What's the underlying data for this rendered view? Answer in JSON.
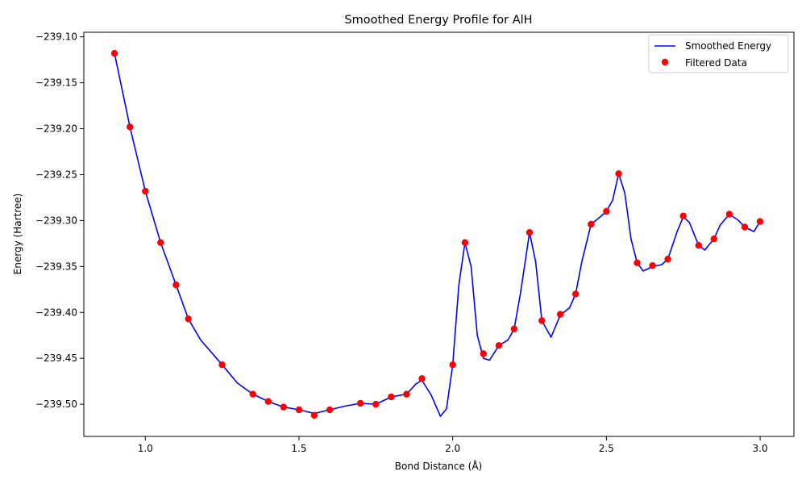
{
  "chart_data": {
    "type": "line",
    "title": "Smoothed Energy Profile for AlH",
    "xlabel": "Bond Distance (Å)",
    "ylabel": "Energy (Hartree)",
    "xlim": [
      0.8,
      3.11
    ],
    "ylim": [
      -239.535,
      -239.095
    ],
    "xticks": [
      1.0,
      1.5,
      2.0,
      2.5,
      3.0
    ],
    "xtick_labels": [
      "1.0",
      "1.5",
      "2.0",
      "2.5",
      "3.0"
    ],
    "yticks": [
      -239.1,
      -239.15,
      -239.2,
      -239.25,
      -239.3,
      -239.35,
      -239.4,
      -239.45,
      -239.5
    ],
    "ytick_labels": [
      "−239.10",
      "−239.15",
      "−239.20",
      "−239.25",
      "−239.30",
      "−239.35",
      "−239.40",
      "−239.45",
      "−239.50"
    ],
    "grid": false,
    "legend_position": "top-right",
    "series": [
      {
        "name": "Smoothed Energy",
        "kind": "line",
        "color": "#0000ff",
        "x": [
          0.9,
          0.95,
          1.0,
          1.05,
          1.1,
          1.14,
          1.18,
          1.25,
          1.3,
          1.35,
          1.4,
          1.45,
          1.5,
          1.55,
          1.6,
          1.65,
          1.7,
          1.75,
          1.8,
          1.85,
          1.88,
          1.9,
          1.93,
          1.96,
          1.98,
          2.0,
          2.02,
          2.04,
          2.06,
          2.08,
          2.1,
          2.12,
          2.15,
          2.18,
          2.2,
          2.22,
          2.25,
          2.27,
          2.29,
          2.32,
          2.35,
          2.38,
          2.4,
          2.42,
          2.45,
          2.48,
          2.5,
          2.52,
          2.54,
          2.56,
          2.58,
          2.6,
          2.62,
          2.65,
          2.68,
          2.7,
          2.73,
          2.75,
          2.77,
          2.8,
          2.82,
          2.85,
          2.87,
          2.9,
          2.93,
          2.95,
          2.98,
          3.0
        ],
        "y": [
          -239.118,
          -239.198,
          -239.268,
          -239.324,
          -239.37,
          -239.407,
          -239.43,
          -239.457,
          -239.477,
          -239.489,
          -239.497,
          -239.503,
          -239.506,
          -239.51,
          -239.506,
          -239.502,
          -239.499,
          -239.5,
          -239.492,
          -239.489,
          -239.478,
          -239.474,
          -239.49,
          -239.513,
          -239.505,
          -239.457,
          -239.37,
          -239.324,
          -239.35,
          -239.425,
          -239.45,
          -239.452,
          -239.436,
          -239.43,
          -239.418,
          -239.38,
          -239.313,
          -239.345,
          -239.409,
          -239.427,
          -239.403,
          -239.395,
          -239.38,
          -239.345,
          -239.304,
          -239.296,
          -239.29,
          -239.278,
          -239.249,
          -239.27,
          -239.32,
          -239.346,
          -239.355,
          -239.35,
          -239.348,
          -239.342,
          -239.312,
          -239.296,
          -239.302,
          -239.327,
          -239.332,
          -239.32,
          -239.305,
          -239.293,
          -239.3,
          -239.307,
          -239.312,
          -239.301
        ]
      },
      {
        "name": "Filtered Data",
        "kind": "scatter",
        "color": "#ff0000",
        "x": [
          0.9,
          0.95,
          1.0,
          1.05,
          1.1,
          1.14,
          1.25,
          1.35,
          1.4,
          1.45,
          1.5,
          1.55,
          1.6,
          1.7,
          1.75,
          1.8,
          1.85,
          1.9,
          2.0,
          2.04,
          2.1,
          2.15,
          2.2,
          2.25,
          2.29,
          2.35,
          2.4,
          2.45,
          2.5,
          2.54,
          2.6,
          2.65,
          2.7,
          2.75,
          2.8,
          2.85,
          2.9,
          2.95,
          3.0
        ],
        "y": [
          -239.118,
          -239.198,
          -239.268,
          -239.324,
          -239.37,
          -239.407,
          -239.457,
          -239.489,
          -239.497,
          -239.503,
          -239.506,
          -239.512,
          -239.506,
          -239.499,
          -239.5,
          -239.492,
          -239.489,
          -239.472,
          -239.457,
          -239.324,
          -239.445,
          -239.436,
          -239.418,
          -239.313,
          -239.409,
          -239.402,
          -239.38,
          -239.304,
          -239.29,
          -239.249,
          -239.346,
          -239.349,
          -239.342,
          -239.295,
          -239.327,
          -239.32,
          -239.293,
          -239.307,
          -239.301
        ]
      }
    ]
  }
}
